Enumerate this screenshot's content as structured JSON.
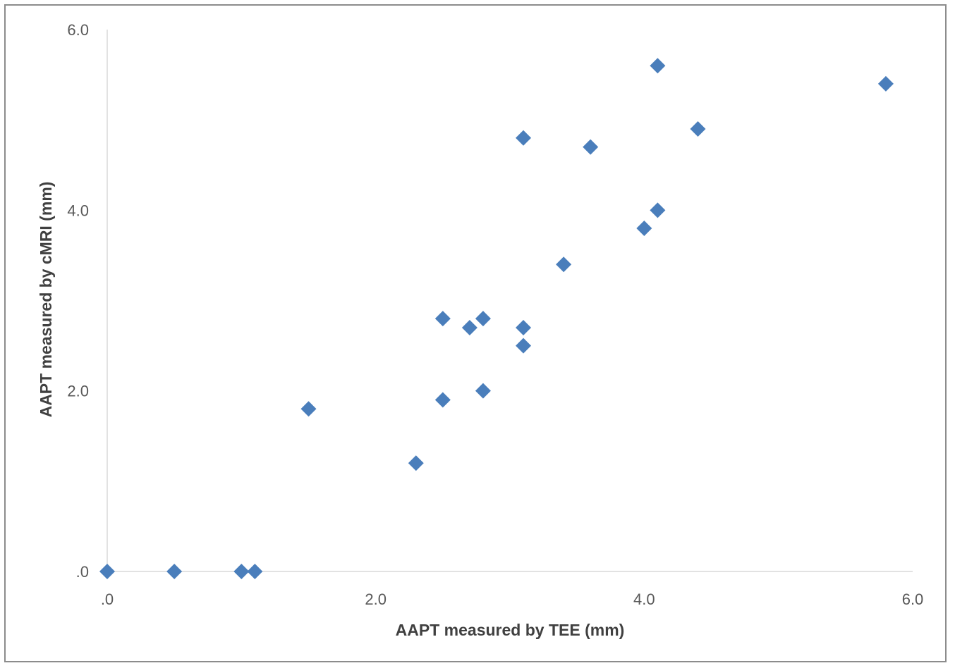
{
  "chart_data": {
    "type": "scatter",
    "title": "",
    "xlabel": "AAPT measured by TEE (mm)",
    "ylabel": "AAPT measured by cMRI (mm)",
    "xlim": [
      0,
      6
    ],
    "ylim": [
      0,
      6
    ],
    "x_ticks": [
      ".0",
      "2.0",
      "4.0",
      "6.0"
    ],
    "y_ticks": [
      ".0",
      "2.0",
      "4.0",
      "6.0"
    ],
    "grid": false,
    "legend": "none",
    "marker": "diamond",
    "series": [
      {
        "color": "#4a7ebb",
        "points": [
          {
            "x": 0.0,
            "y": 0.0
          },
          {
            "x": 0.5,
            "y": 0.0
          },
          {
            "x": 1.0,
            "y": 0.0
          },
          {
            "x": 1.1,
            "y": 0.0
          },
          {
            "x": 1.5,
            "y": 1.8
          },
          {
            "x": 2.3,
            "y": 1.2
          },
          {
            "x": 2.5,
            "y": 1.9
          },
          {
            "x": 2.5,
            "y": 2.8
          },
          {
            "x": 2.7,
            "y": 2.7
          },
          {
            "x": 2.8,
            "y": 2.8
          },
          {
            "x": 2.8,
            "y": 2.0
          },
          {
            "x": 3.1,
            "y": 2.7
          },
          {
            "x": 3.1,
            "y": 2.5
          },
          {
            "x": 3.1,
            "y": 4.8
          },
          {
            "x": 3.4,
            "y": 3.4
          },
          {
            "x": 3.6,
            "y": 4.7
          },
          {
            "x": 4.0,
            "y": 3.8
          },
          {
            "x": 4.1,
            "y": 4.0
          },
          {
            "x": 4.1,
            "y": 5.6
          },
          {
            "x": 4.4,
            "y": 4.9
          },
          {
            "x": 5.8,
            "y": 5.4
          }
        ]
      }
    ],
    "axis_color": "#d9d9d9"
  }
}
